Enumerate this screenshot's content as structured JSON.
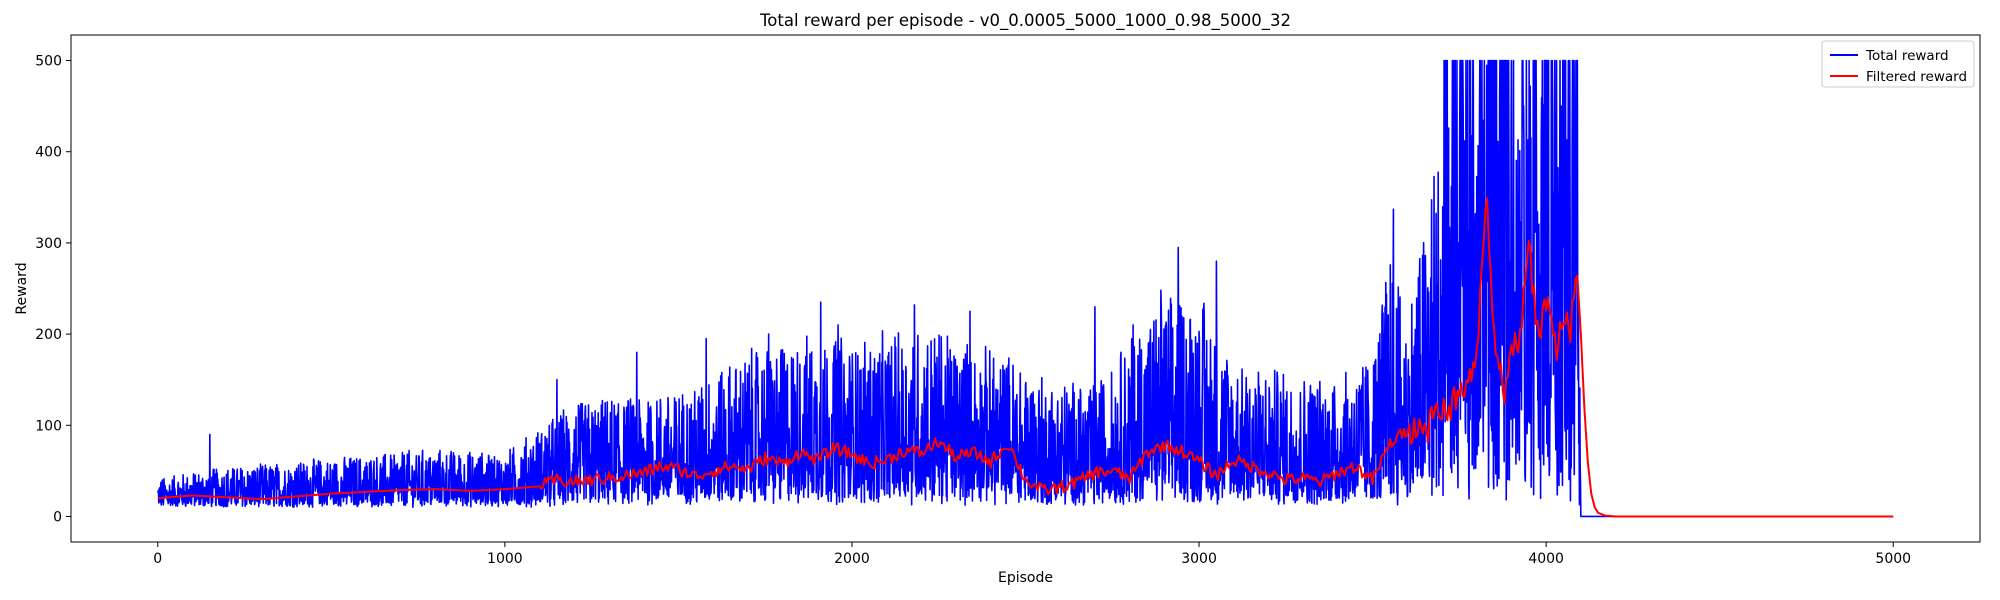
{
  "chart_data": {
    "type": "line",
    "title": "Total reward per episode - v0_0.0005_5000_1000_0.98_5000_32",
    "xlabel": "Episode",
    "ylabel": "Reward",
    "xlim": [
      -250,
      5250
    ],
    "ylim": [
      -28,
      528
    ],
    "xticks": [
      0,
      1000,
      2000,
      3000,
      4000,
      5000
    ],
    "yticks": [
      0,
      100,
      200,
      300,
      400,
      500
    ],
    "grid": false,
    "legend_position": "top-right",
    "series": [
      {
        "name": "Total reward",
        "color": "#0000ff",
        "kind": "raw",
        "note_x_step": 1,
        "envelope_x": [
          0,
          200,
          500,
          800,
          1000,
          1200,
          1500,
          1700,
          1900,
          2000,
          2200,
          2400,
          2500,
          2700,
          2850,
          3000,
          3100,
          3200,
          3400,
          3500,
          3550,
          3600,
          3700,
          3800,
          3900,
          4000,
          4090,
          4100,
          5000
        ],
        "envelope_min": [
          10,
          10,
          10,
          10,
          10,
          10,
          12,
          12,
          12,
          12,
          12,
          12,
          12,
          12,
          12,
          12,
          12,
          12,
          12,
          12,
          12,
          12,
          12,
          12,
          12,
          10,
          10,
          0,
          0
        ],
        "envelope_max": [
          45,
          60,
          70,
          80,
          75,
          140,
          150,
          200,
          220,
          210,
          230,
          200,
          180,
          160,
          250,
          280,
          190,
          180,
          170,
          200,
          330,
          240,
          500,
          500,
          500,
          500,
          500,
          0,
          0
        ],
        "peaks": [
          [
            150,
            90
          ],
          [
            1150,
            150
          ],
          [
            1380,
            180
          ],
          [
            1580,
            195
          ],
          [
            1760,
            200
          ],
          [
            1910,
            235
          ],
          [
            1960,
            210
          ],
          [
            2180,
            232
          ],
          [
            2340,
            225
          ],
          [
            2700,
            230
          ],
          [
            2810,
            210
          ],
          [
            2890,
            248
          ],
          [
            2940,
            295
          ],
          [
            3050,
            280
          ],
          [
            3560,
            337
          ],
          [
            3710,
            500
          ],
          [
            3790,
            500
          ],
          [
            3810,
            500
          ],
          [
            3870,
            500
          ],
          [
            3900,
            500
          ],
          [
            3970,
            500
          ],
          [
            4000,
            500
          ],
          [
            4050,
            500
          ],
          [
            4090,
            500
          ]
        ]
      },
      {
        "name": "Filtered reward",
        "color": "#ff0000",
        "kind": "filtered",
        "x": [
          0,
          100,
          200,
          300,
          400,
          500,
          600,
          700,
          800,
          900,
          1000,
          1100,
          1150,
          1200,
          1300,
          1400,
          1450,
          1500,
          1550,
          1600,
          1650,
          1700,
          1750,
          1800,
          1850,
          1900,
          1950,
          2000,
          2050,
          2100,
          2150,
          2200,
          2250,
          2300,
          2350,
          2400,
          2450,
          2500,
          2550,
          2600,
          2650,
          2700,
          2750,
          2800,
          2850,
          2900,
          2950,
          3000,
          3050,
          3100,
          3150,
          3200,
          3250,
          3300,
          3350,
          3400,
          3450,
          3500,
          3550,
          3600,
          3650,
          3700,
          3750,
          3800,
          3830,
          3850,
          3880,
          3900,
          3920,
          3950,
          3980,
          4000,
          4030,
          4050,
          4070,
          4090,
          4100,
          4110,
          4120,
          4130,
          4140,
          4150,
          4170,
          4200,
          4250,
          4300,
          5000
        ],
        "y": [
          20,
          23,
          21,
          19,
          22,
          25,
          27,
          29,
          30,
          28,
          30,
          33,
          40,
          38,
          42,
          48,
          55,
          52,
          44,
          50,
          55,
          52,
          64,
          58,
          70,
          62,
          75,
          68,
          58,
          62,
          72,
          70,
          82,
          65,
          70,
          60,
          80,
          40,
          28,
          32,
          38,
          48,
          50,
          42,
          70,
          78,
          72,
          60,
          45,
          62,
          55,
          48,
          40,
          42,
          38,
          48,
          55,
          40,
          80,
          95,
          100,
          115,
          130,
          180,
          358,
          190,
          140,
          200,
          175,
          295,
          190,
          240,
          180,
          220,
          200,
          270,
          200,
          120,
          60,
          25,
          10,
          4,
          1,
          0,
          0,
          0,
          0
        ]
      }
    ]
  }
}
